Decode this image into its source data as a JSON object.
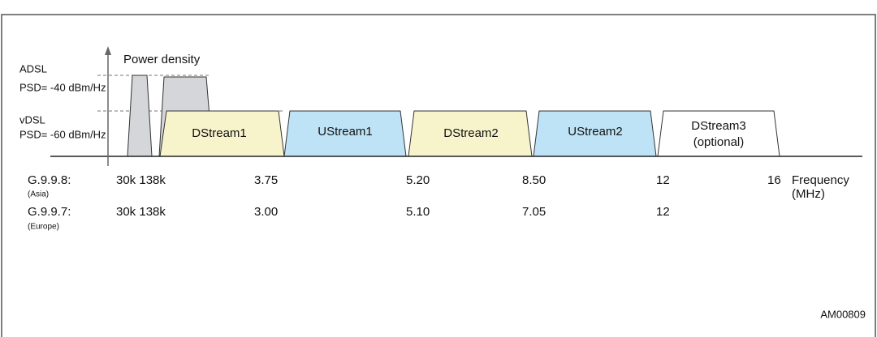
{
  "axis_label": "Power density",
  "levels": [
    {
      "name": "ADSL",
      "psd": "PSD= -40 dBm/Hz"
    },
    {
      "name": "vDSL",
      "psd": "PSD= -60 dBm/Hz"
    }
  ],
  "bands": [
    {
      "label": "DStream1"
    },
    {
      "label": "UStream1"
    },
    {
      "label": "DStream2"
    },
    {
      "label": "UStream2"
    },
    {
      "label": "DStream3",
      "note": "(optional)"
    }
  ],
  "rows": [
    {
      "standard": "G.9.9.8:",
      "region": "(Asia)",
      "values": [
        "30k 138k",
        "3.75",
        "5.20",
        "8.50",
        "12",
        "16"
      ]
    },
    {
      "standard": "G.9.9.7:",
      "region": "(Europe)",
      "values": [
        "30k 138k",
        "3.00",
        "5.10",
        "7.05",
        "12"
      ]
    }
  ],
  "unit": {
    "name": "Frequency",
    "unit": "(MHz)"
  },
  "figure_id": "AM00809"
}
